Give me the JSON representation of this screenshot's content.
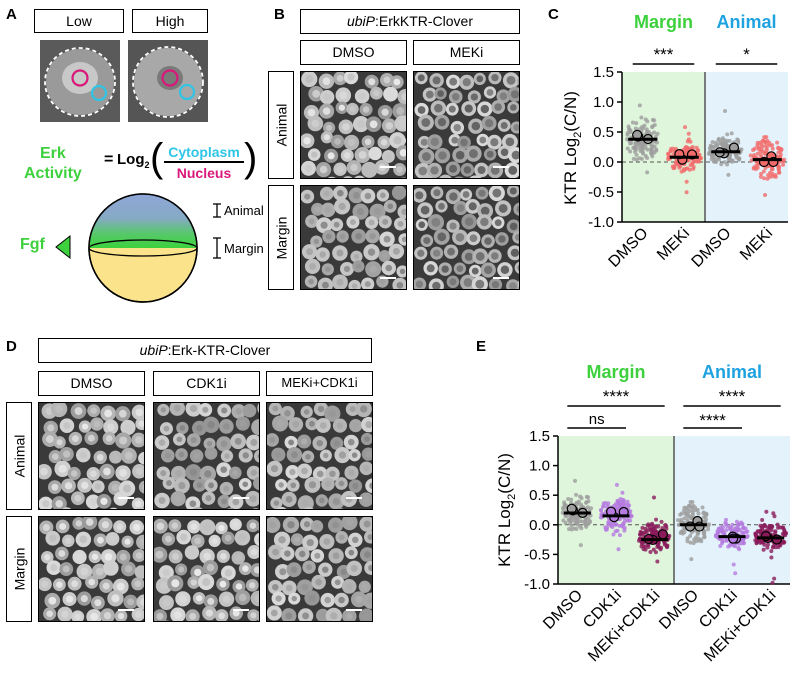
{
  "panelA": {
    "label": "A",
    "low": "Low",
    "high": "High",
    "erk": "Erk",
    "activity": "Activity",
    "eq": "=",
    "log": "Log",
    "log_sub": "2",
    "cytoplasm": "Cytoplasm",
    "nucleus": "Nucleus",
    "fgf": "Fgf",
    "animal": "Animal",
    "margin": "Margin",
    "colors": {
      "cyan": "#2ec5e6",
      "magenta": "#d9187a",
      "green": "#3dd13d"
    }
  },
  "panelB": {
    "label": "B",
    "title_italic": "ubiP",
    "title_rest": ":ErkKTR-Clover",
    "col1": "DMSO",
    "col2": "MEKi",
    "row1": "Animal",
    "row2": "Margin"
  },
  "panelC": {
    "label": "C",
    "group1": "Margin",
    "group2": "Animal",
    "sig1": "***",
    "sig2": "*",
    "ylabel": "KTR Log",
    "ylabel_sub": "2",
    "ylabel_end": "(C/N)",
    "categories": [
      "DMSO",
      "MEKi",
      "DMSO",
      "MEKi"
    ]
  },
  "panelD": {
    "label": "D",
    "title_italic": "ubiP",
    "title_rest": ":Erk-KTR-Clover",
    "col1": "DMSO",
    "col2": "CDK1i",
    "col3": "MEKi+CDK1i",
    "row1": "Animal",
    "row2": "Margin"
  },
  "panelE": {
    "label": "E",
    "group1": "Margin",
    "group2": "Animal",
    "sig_ns": "ns",
    "sig_a": "****",
    "sig_b": "****",
    "sig_c": "****",
    "ylabel": "KTR Log",
    "ylabel_sub": "2",
    "ylabel_end": "(C/N)",
    "categories": [
      "DMSO",
      "CDK1i",
      "MEKi+CDK1i",
      "DMSO",
      "CDK1i",
      "MEKi+CDK1i"
    ]
  },
  "chart_data": [
    {
      "type": "scatter",
      "panel": "C",
      "categories": [
        "DMSO",
        "MEKi",
        "DMSO",
        "MEKi"
      ],
      "groups": [
        "Margin",
        "Margin",
        "Animal",
        "Animal"
      ],
      "medians": [
        0.38,
        0.08,
        0.17,
        0.04
      ],
      "means": [
        0.4,
        0.08,
        0.18,
        0.05
      ],
      "spread": [
        0.3,
        0.18,
        0.2,
        0.25
      ],
      "yticks": [
        -1.0,
        -0.5,
        0.0,
        0.5,
        1.0,
        1.5
      ],
      "ylim": [
        -1.0,
        1.5
      ],
      "colors": [
        "#9e9e9e",
        "#f26b6b",
        "#9e9e9e",
        "#f26b6b"
      ],
      "bg_colors": [
        "#dff5dc",
        "#e3f2fb"
      ]
    },
    {
      "type": "scatter",
      "panel": "E",
      "categories": [
        "DMSO",
        "CDK1i",
        "MEKi+CDK1i",
        "DMSO",
        "CDK1i",
        "MEKi+CDK1i"
      ],
      "groups": [
        "Margin",
        "Margin",
        "Margin",
        "Animal",
        "Animal",
        "Animal"
      ],
      "medians": [
        0.2,
        0.15,
        -0.25,
        0.0,
        -0.2,
        -0.22
      ],
      "means": [
        0.22,
        0.17,
        -0.22,
        0.02,
        -0.18,
        -0.2
      ],
      "spread": [
        0.25,
        0.25,
        0.22,
        0.25,
        0.2,
        0.22
      ],
      "yticks": [
        -1.0,
        -0.5,
        0.0,
        0.5,
        1.0,
        1.5
      ],
      "ylim": [
        -1.0,
        1.5
      ],
      "colors": [
        "#9e9e9e",
        "#b57be0",
        "#8a1a5a",
        "#9e9e9e",
        "#b57be0",
        "#8a1a5a"
      ],
      "bg_colors": [
        "#dff5dc",
        "#e3f2fb"
      ]
    }
  ]
}
